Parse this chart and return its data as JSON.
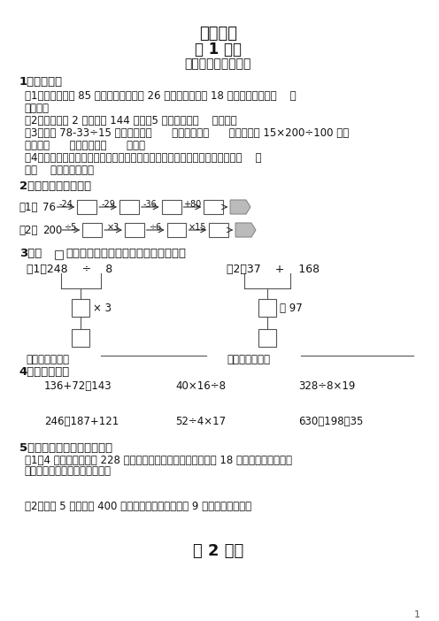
{
  "title1": "四则运算",
  "title2": "第 1 课时",
  "title3": "加减、乘除混合运算",
  "bg_color": "#ffffff",
  "text_color": "#333333",
  "section1_title": "1、填一填。",
  "section1_items": [
    "（1）食品超市有 85 箱饮料，上午卖出 26 箱，下午又运来 18 箱，超市现在有（    ）",
    "箱饮料。",
    "（2）一辆轿车 2 小时行驶 144 千米，5 小时能行驶（    ）千米。",
    "（3）计算 78-33÷15 时，要先算（      ）法，再算（      ）法。计算 15×200÷100 时，",
    "要先算（      ）法，再算（      ）法。",
    "（4）在没有括号的算式里，如果只有加、减法或者只有乘、除法，都要按从（    ）",
    "往（    ）的顺序计算。"
  ],
  "section2_title": "2、比一比，谁最快。",
  "row1_start": "76",
  "row1_ops": [
    "-24",
    "-29",
    "-36",
    "+80"
  ],
  "row2_start": "200",
  "row2_ops": [
    "÷5",
    "×3",
    "÷6",
    "×15"
  ],
  "section3_title": "3、在□里填上适当的数，然后列出综合算式。",
  "section3_sub1": "（1）248    ÷    8",
  "section3_sub2": "（2）37    +    168",
  "section3_sub1_detail": "× 3",
  "section3_sub2_detail": "－ 97",
  "label_综合1": "列出综合算式：",
  "label_综合2": "列出综合算式：",
  "section4_title": "4、脱式计算。",
  "calc_row1": [
    "136+72－143",
    "40×16÷8",
    "328÷8×19"
  ],
  "calc_row2": [
    "246－187+121",
    "52÷4×17",
    "630－198－35"
  ],
  "section5_title": "5、列综合算式，解决问题。",
  "section5_items": [
    "（1）4 节车厢一共装煤 228 吨，照这样计算，如果一列火车有 18 节这样的车厢，那么",
    "这列火车一共可以运煤多少吨？",
    "（2）小明 5 分钟跑了 400 米，照这样的速度，小明 9 分钟能跑多少米？"
  ],
  "footer_title": "第 2 课时",
  "page_num": "1"
}
